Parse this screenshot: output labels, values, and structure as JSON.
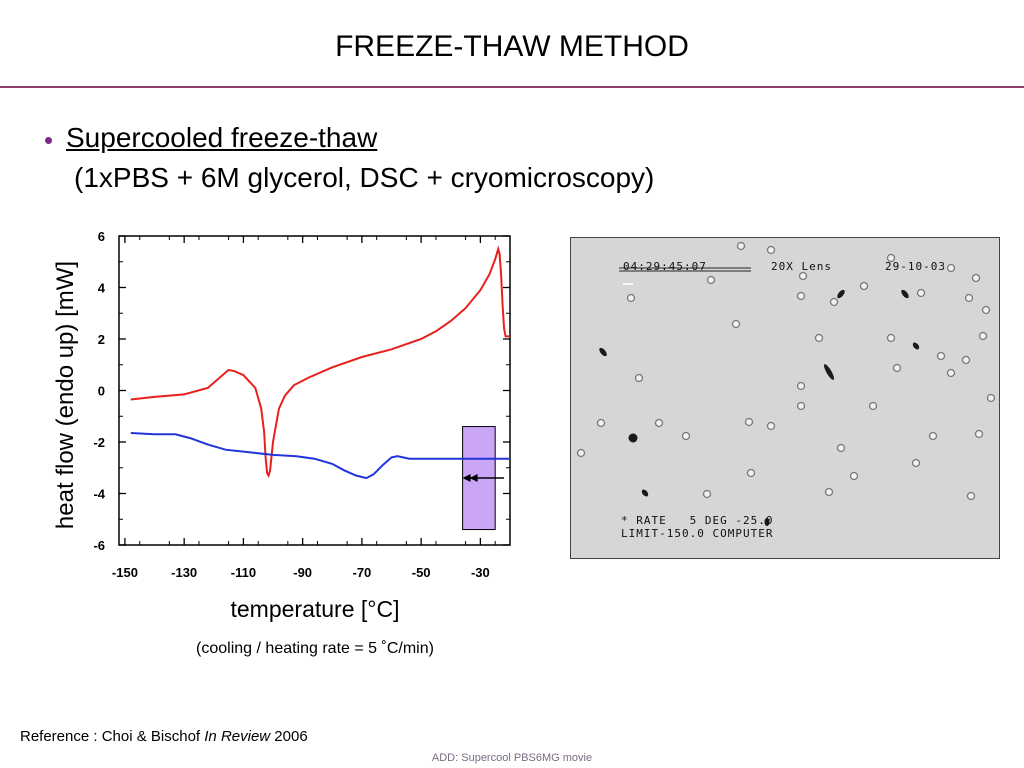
{
  "slide": {
    "title": "FREEZE-THAW METHOD",
    "bullet_heading": "Supercooled freeze-thaw",
    "bullet_sub": "(1xPBS + 6M glycerol, DSC + cryomicroscopy)"
  },
  "chart_data": {
    "type": "line",
    "ylabel": "heat flow (endo up) [mW]",
    "xlabel": "temperature [°C]",
    "note": "(cooling / heating rate = 5 ˚C/min)",
    "xlim": [
      -152,
      -20
    ],
    "ylim": [
      -6,
      6
    ],
    "xticks": [
      -150,
      -130,
      -110,
      -90,
      -70,
      -50,
      -30
    ],
    "yticks": [
      6,
      4,
      2,
      0,
      -2,
      -4,
      -6
    ],
    "series": [
      {
        "color": "#e8201c",
        "points": [
          [
            -148,
            -0.35
          ],
          [
            -140,
            -0.25
          ],
          [
            -130,
            -0.15
          ],
          [
            -122,
            0.1
          ],
          [
            -118,
            0.5
          ],
          [
            -115,
            0.8
          ],
          [
            -113,
            0.75
          ],
          [
            -110,
            0.6
          ],
          [
            -106,
            0.1
          ],
          [
            -104,
            -0.7
          ],
          [
            -103,
            -1.6
          ],
          [
            -102.5,
            -2.6
          ],
          [
            -102,
            -3.2
          ],
          [
            -101.5,
            -3.3
          ],
          [
            -101,
            -3.1
          ],
          [
            -100,
            -2.0
          ],
          [
            -98,
            -0.7
          ],
          [
            -96,
            -0.2
          ],
          [
            -93,
            0.2
          ],
          [
            -88,
            0.5
          ],
          [
            -80,
            0.9
          ],
          [
            -70,
            1.3
          ],
          [
            -60,
            1.6
          ],
          [
            -50,
            2.0
          ],
          [
            -45,
            2.3
          ],
          [
            -40,
            2.7
          ],
          [
            -35,
            3.2
          ],
          [
            -30,
            3.9
          ],
          [
            -27,
            4.5
          ],
          [
            -25,
            5.1
          ],
          [
            -24,
            5.5
          ],
          [
            -23.5,
            5.3
          ],
          [
            -23,
            4.5
          ],
          [
            -22.5,
            3.3
          ],
          [
            -22,
            2.4
          ],
          [
            -21.5,
            2.1
          ],
          [
            -20,
            2.1
          ]
        ]
      },
      {
        "color": "#2233dd",
        "points": [
          [
            -148,
            -1.65
          ],
          [
            -140,
            -1.7
          ],
          [
            -133,
            -1.7
          ],
          [
            -128,
            -1.85
          ],
          [
            -122,
            -2.1
          ],
          [
            -116,
            -2.3
          ],
          [
            -108,
            -2.4
          ],
          [
            -100,
            -2.5
          ],
          [
            -92,
            -2.55
          ],
          [
            -86,
            -2.65
          ],
          [
            -80,
            -2.85
          ],
          [
            -76,
            -3.1
          ],
          [
            -72,
            -3.3
          ],
          [
            -68.5,
            -3.4
          ],
          [
            -66,
            -3.25
          ],
          [
            -63,
            -2.9
          ],
          [
            -60,
            -2.6
          ],
          [
            -58,
            -2.55
          ],
          [
            -54,
            -2.65
          ],
          [
            -45,
            -2.65
          ],
          [
            -35,
            -2.65
          ],
          [
            -20,
            -2.65
          ]
        ]
      }
    ],
    "highlight": {
      "x": [
        -36,
        -25
      ],
      "y": [
        -1.4,
        -5.4
      ],
      "color": "#cba6f7"
    },
    "arrow": {
      "from_x": -22,
      "to_x": -36,
      "y": -3.4
    }
  },
  "micro": {
    "timestamp": "04:29:45:07",
    "lens": "20X Lens",
    "date": "29-10-03",
    "rate_line": "* RATE   5 DEG -25.0",
    "limit_line": "LIMIT-150.0 COMPUTER"
  },
  "reference": {
    "prefix": "Reference : Choi & Bischof ",
    "journal": "In Review",
    "year": " 2006"
  },
  "footer": "ADD: Supercool PBS6MG movie"
}
